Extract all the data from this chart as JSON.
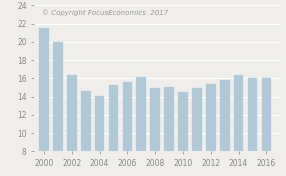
{
  "years": [
    2000,
    2001,
    2002,
    2003,
    2004,
    2005,
    2006,
    2007,
    2008,
    2009,
    2010,
    2011,
    2012,
    2013,
    2014,
    2016
  ],
  "values": [
    21.5,
    20.0,
    16.4,
    14.6,
    14.1,
    15.3,
    15.6,
    16.1,
    14.9,
    15.0,
    14.5,
    14.9,
    15.4,
    15.8,
    16.4,
    16.0
  ],
  "all_years": [
    2000,
    2001,
    2002,
    2003,
    2004,
    2005,
    2006,
    2007,
    2008,
    2009,
    2010,
    2011,
    2012,
    2013,
    2014,
    2015,
    2016
  ],
  "all_values": [
    21.5,
    20.0,
    16.4,
    14.6,
    14.1,
    15.3,
    15.6,
    16.1,
    14.9,
    15.0,
    14.5,
    14.9,
    15.4,
    15.8,
    16.4,
    16.0,
    16.0
  ],
  "bar_color": "#b0c9d8",
  "bar_edge_color": "#b0c9d8",
  "background_color": "#f0eeea",
  "ylim": [
    8,
    24
  ],
  "ymin": 8,
  "yticks": [
    8,
    10,
    12,
    14,
    16,
    18,
    20,
    22,
    24
  ],
  "xticks": [
    2000,
    2002,
    2004,
    2006,
    2008,
    2010,
    2012,
    2014,
    2016
  ],
  "copyright_text": "© Copyright FocusEconomics  2017",
  "grid_color": "#ffffff",
  "tick_label_fontsize": 5.5,
  "annotation_fontsize": 5.0,
  "tick_color": "#888888"
}
